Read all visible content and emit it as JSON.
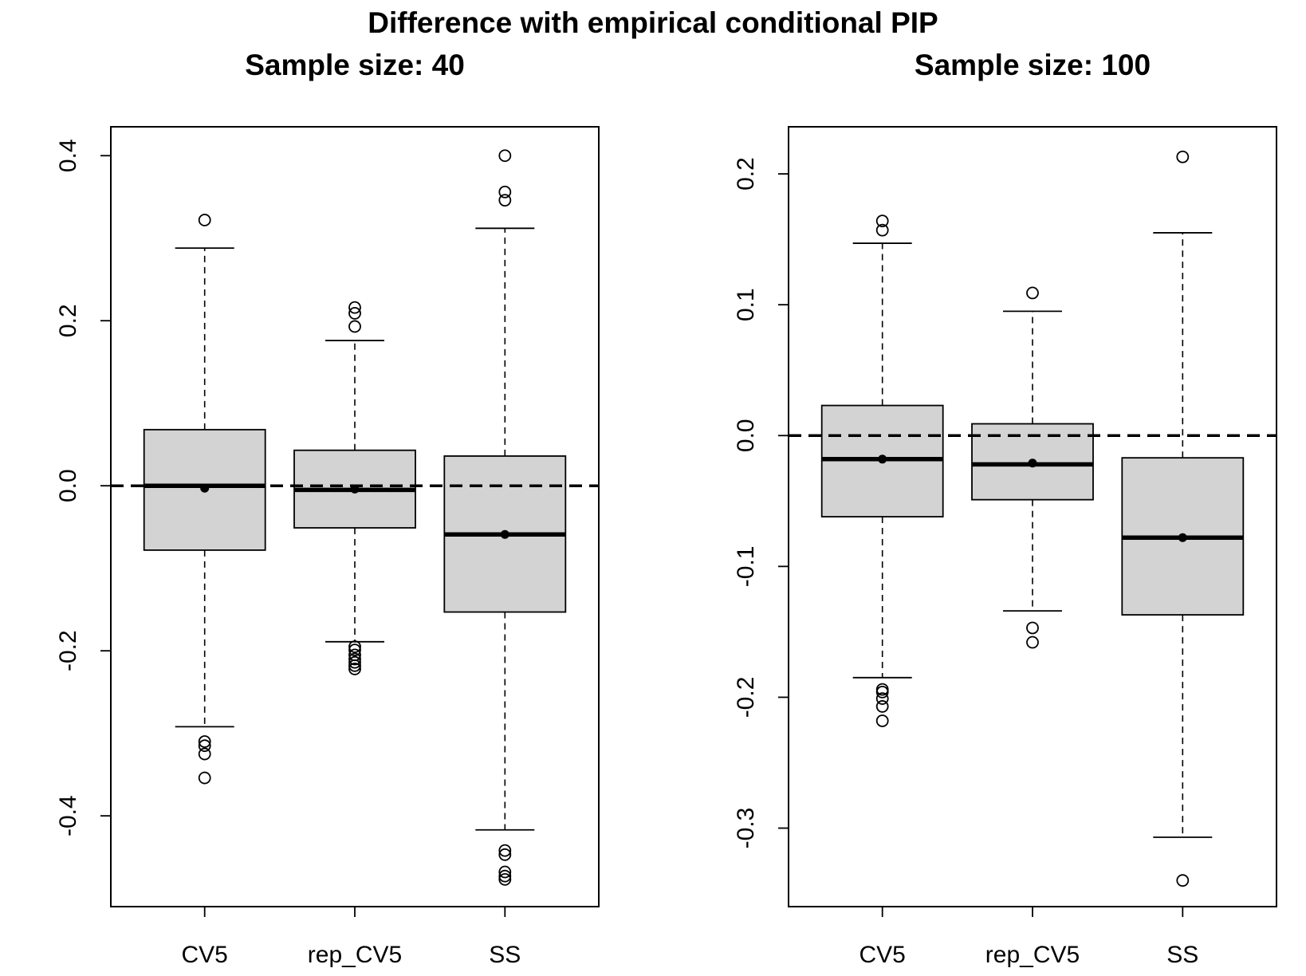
{
  "title": "Difference with empirical conditional PIP",
  "chart_data": [
    {
      "type": "boxplot",
      "title": "Sample size: 40",
      "categories": [
        "CV5",
        "rep_CV5",
        "SS"
      ],
      "y_ticks": [
        -0.4,
        -0.2,
        0.0,
        0.2,
        0.4
      ],
      "y_tick_labels": [
        "-0.4",
        "-0.2",
        "0.0",
        "0.2",
        "0.4"
      ],
      "ylim": [
        -0.51,
        0.435
      ],
      "reference_line": 0.0,
      "boxes": [
        {
          "name": "CV5",
          "q1": -0.078,
          "median": 0.0,
          "q3": 0.068,
          "whisker_low": -0.292,
          "whisker_high": 0.288,
          "mean": -0.003,
          "outliers": [
            0.322,
            -0.31,
            -0.315,
            -0.325,
            -0.354
          ]
        },
        {
          "name": "rep_CV5",
          "q1": -0.051,
          "median": -0.005,
          "q3": 0.043,
          "whisker_low": -0.189,
          "whisker_high": 0.176,
          "mean": -0.004,
          "outliers": [
            0.216,
            0.209,
            0.193,
            -0.195,
            -0.199,
            -0.205,
            -0.21,
            -0.214,
            -0.218,
            -0.222
          ]
        },
        {
          "name": "SS",
          "q1": -0.153,
          "median": -0.059,
          "q3": 0.036,
          "whisker_low": -0.417,
          "whisker_high": 0.312,
          "mean": -0.059,
          "outliers": [
            0.4,
            0.356,
            0.346,
            -0.442,
            -0.447,
            -0.468,
            -0.473,
            -0.477
          ]
        }
      ]
    },
    {
      "type": "boxplot",
      "title": "Sample size: 100",
      "categories": [
        "CV5",
        "rep_CV5",
        "SS"
      ],
      "y_ticks": [
        -0.3,
        -0.2,
        -0.1,
        0.0,
        0.1,
        0.2
      ],
      "y_tick_labels": [
        "-0.3",
        "-0.2",
        "-0.1",
        "0.0",
        "0.1",
        "0.2"
      ],
      "ylim": [
        -0.36,
        0.236
      ],
      "reference_line": 0.0,
      "boxes": [
        {
          "name": "CV5",
          "q1": -0.062,
          "median": -0.018,
          "q3": 0.023,
          "whisker_low": -0.185,
          "whisker_high": 0.147,
          "mean": -0.018,
          "outliers": [
            0.164,
            0.157,
            -0.194,
            -0.196,
            -0.201,
            -0.207,
            -0.218
          ]
        },
        {
          "name": "rep_CV5",
          "q1": -0.049,
          "median": -0.022,
          "q3": 0.009,
          "whisker_low": -0.134,
          "whisker_high": 0.095,
          "mean": -0.021,
          "outliers": [
            0.109,
            -0.147,
            -0.158
          ]
        },
        {
          "name": "SS",
          "q1": -0.137,
          "median": -0.078,
          "q3": -0.017,
          "whisker_low": -0.307,
          "whisker_high": 0.155,
          "mean": -0.078,
          "outliers": [
            0.213,
            -0.34
          ]
        }
      ]
    }
  ]
}
